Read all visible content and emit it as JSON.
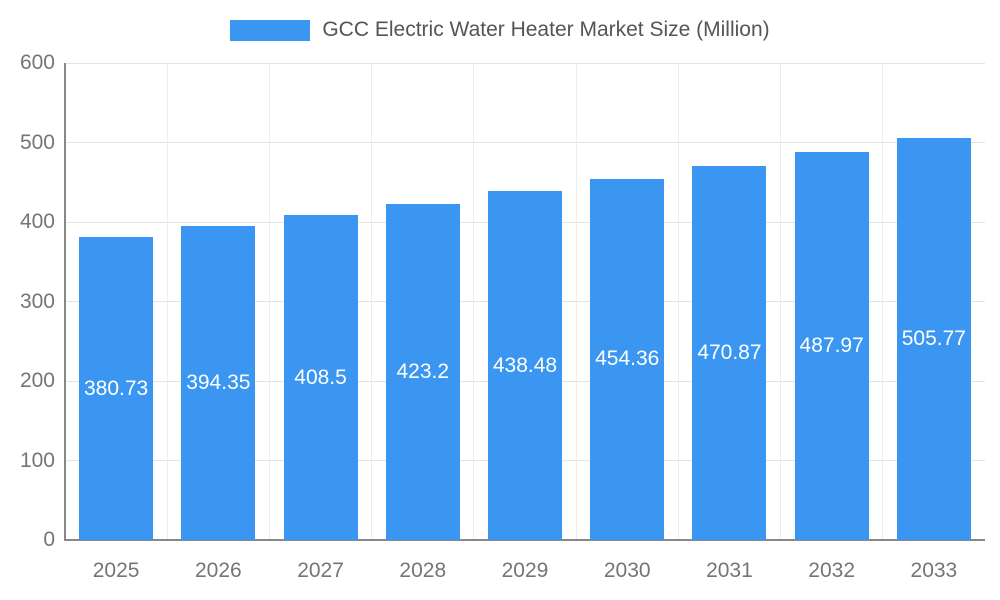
{
  "chart_data": {
    "type": "bar",
    "title": "GCC Electric Water Heater Market Size (Million)",
    "categories": [
      "2025",
      "2026",
      "2027",
      "2028",
      "2029",
      "2030",
      "2031",
      "2032",
      "2033"
    ],
    "values": [
      380.73,
      394.35,
      408.5,
      423.2,
      438.48,
      454.36,
      470.87,
      487.97,
      505.77
    ],
    "value_labels": [
      "380.73",
      "394.35",
      "408.5",
      "423.2",
      "438.48",
      "454.36",
      "470.87",
      "487.97",
      "505.77"
    ],
    "xlabel": "",
    "ylabel": "",
    "ylim": [
      0,
      600
    ],
    "yticks": [
      0,
      100,
      200,
      300,
      400,
      500,
      600
    ],
    "grid": true,
    "legend_position": "top-center",
    "colors": {
      "bar": "#3a96f0",
      "value_label": "#ffffff",
      "axis_text": "#757575",
      "gridline": "#e3e3e3",
      "gridline_vertical": "#ededed",
      "axis_line": "#888888",
      "title_text": "#555555",
      "background": "#ffffff"
    }
  }
}
